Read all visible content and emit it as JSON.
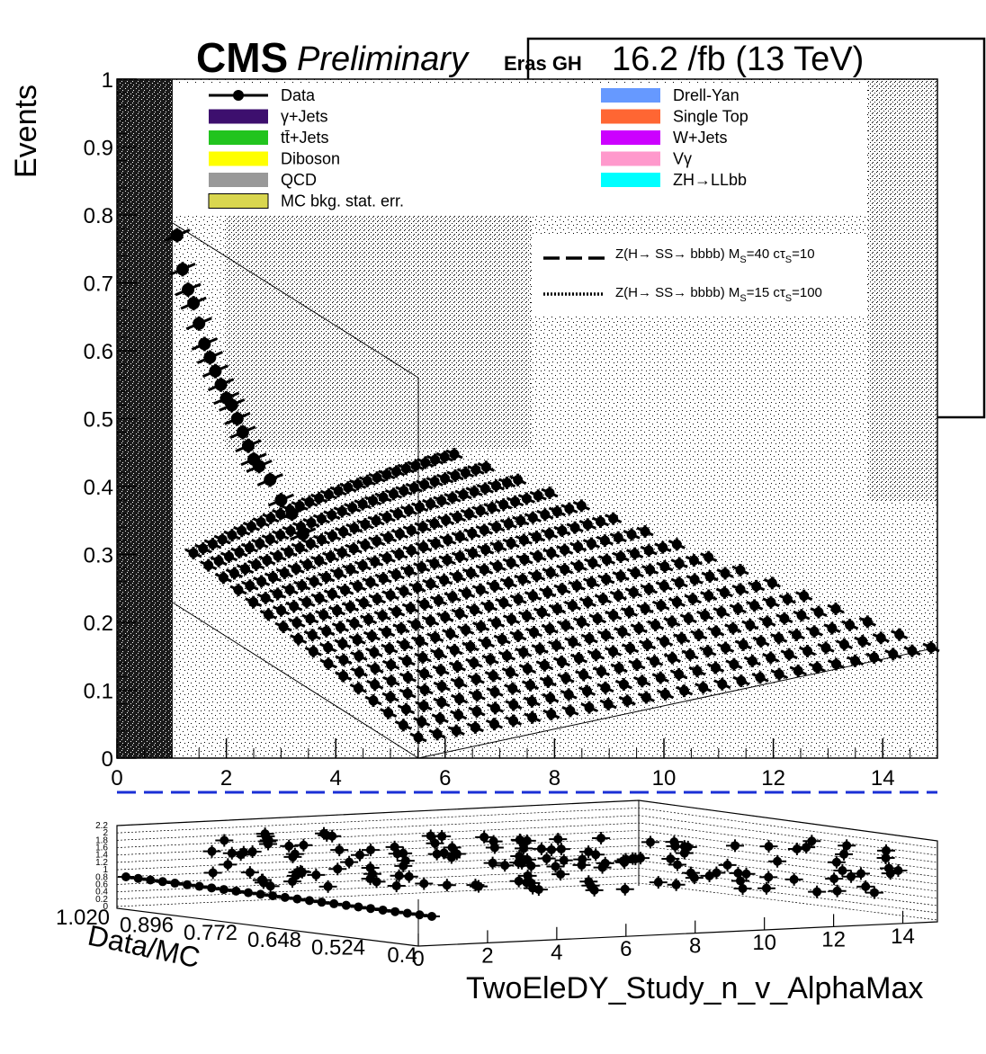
{
  "header": {
    "cms": "CMS",
    "preliminary": "Preliminary",
    "eras": "Eras GH",
    "lumi": "16.2 /fb (13 TeV)"
  },
  "legend": {
    "left": [
      {
        "label": "Data",
        "kind": "marker",
        "color": "#000000"
      },
      {
        "label": "γ+Jets",
        "kind": "fill",
        "color": "#3d0f6e"
      },
      {
        "label": "tt̄+Jets",
        "kind": "fill",
        "color": "#22c41e"
      },
      {
        "label": "Diboson",
        "kind": "fill",
        "color": "#ffff00"
      },
      {
        "label": "QCD",
        "kind": "fill",
        "color": "#999999"
      },
      {
        "label": "MC bkg. stat. err.",
        "kind": "fill",
        "color": "#d9d64f"
      }
    ],
    "right": [
      {
        "label": "Drell-Yan",
        "kind": "fill",
        "color": "#6699ff"
      },
      {
        "label": "Single Top",
        "kind": "fill",
        "color": "#ff6633"
      },
      {
        "label": "W+Jets",
        "kind": "fill",
        "color": "#cc00ff"
      },
      {
        "label": "Vγ",
        "kind": "fill",
        "color": "#ff99cc"
      },
      {
        "label": "ZH→LLbb",
        "kind": "fill",
        "color": "#00ffff"
      }
    ],
    "signals": [
      {
        "label": "Z(H→ SS→ bbbb) M",
        "sub1": "S",
        "mid": "=40 cτ",
        "sub2": "S",
        "end": "=10",
        "style": "dashed"
      },
      {
        "label": "Z(H→ SS→ bbbb) M",
        "sub1": "S",
        "mid": "=15 cτ",
        "sub2": "S",
        "end": "=100",
        "style": "dotted"
      }
    ]
  },
  "chart_data": [
    {
      "type": "scatter",
      "panel": "main",
      "ylabel": "Events",
      "xlim": [
        0,
        15
      ],
      "ylim": [
        0,
        1
      ],
      "x_ticks": [
        "0",
        "2",
        "4",
        "6",
        "8",
        "10",
        "12",
        "14"
      ],
      "y_ticks": [
        "0",
        "0.1",
        "0.2",
        "0.3",
        "0.4",
        "0.5",
        "0.6",
        "0.7",
        "0.8",
        "0.9",
        "1"
      ],
      "series": [
        {
          "name": "Data",
          "x": [
            1.1,
            1.2,
            1.3,
            1.4,
            1.5,
            1.6,
            1.7,
            1.8,
            1.9,
            2.0,
            2.1,
            2.2,
            2.3,
            2.4,
            2.5,
            2.6,
            2.8,
            3.0,
            3.2,
            3.4
          ],
          "y": [
            0.77,
            0.72,
            0.69,
            0.67,
            0.64,
            0.61,
            0.59,
            0.57,
            0.55,
            0.53,
            0.52,
            0.5,
            0.48,
            0.46,
            0.44,
            0.43,
            0.41,
            0.38,
            0.36,
            0.33
          ]
        }
      ],
      "grid": false
    },
    {
      "type": "scatter",
      "panel": "ratio",
      "ylabel": "Data/MC",
      "xlabel": "TwoEleDY_Study_n_v_AlphaMax",
      "x_ticks": [
        "0",
        "2",
        "4",
        "6",
        "8",
        "10",
        "12",
        "14"
      ],
      "depth_ticks": [
        "1.020",
        "0.896",
        "0.772",
        "0.648",
        "0.524",
        "0.4"
      ],
      "y_ticks": [
        "2.2",
        "2",
        "1.8",
        "1.6",
        "1.4",
        "1.2",
        "1",
        "0.8",
        "0.6",
        "0.4",
        "0.2",
        "0"
      ],
      "grid": true
    }
  ]
}
